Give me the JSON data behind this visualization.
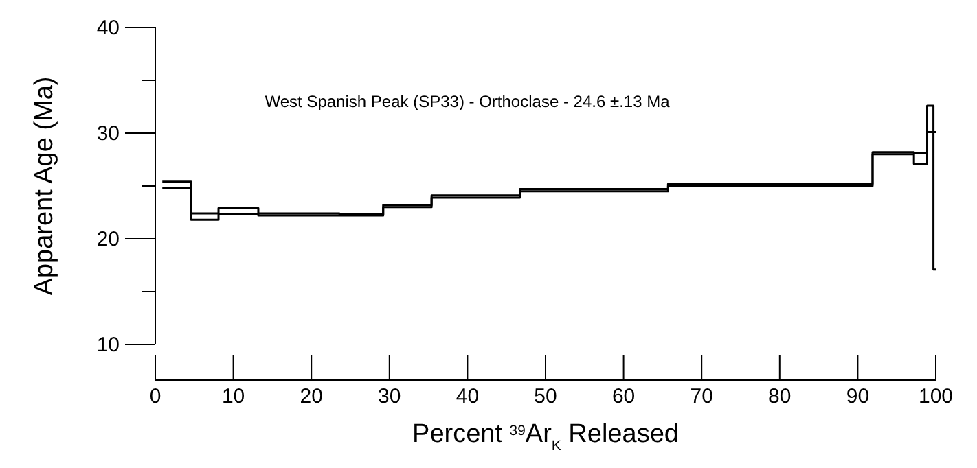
{
  "chart_data": {
    "type": "step",
    "xlabel": "Percent $^{39}$Ar$_{K}$ Released",
    "ylabel": "Apparent Age (Ma)",
    "annotations": [
      "West Spanish Peak (SP33) - Orthoclase - 24.6 ±.13 Ma"
    ],
    "x": [
      0.9,
      4.6,
      8.1,
      13.2,
      18.5,
      23.6,
      29.2,
      35.4,
      46.7,
      65.7,
      91.9,
      97.2,
      98.9,
      99.7,
      100
    ],
    "series": [
      {
        "color": "#000000",
        "values": [
          25.4,
          22.4,
          22.9,
          22.4,
          22.4,
          22.3,
          23.2,
          24.1,
          24.7,
          25.2,
          28.2,
          28.1,
          32.6,
          30.1,
          30.1
        ]
      },
      {
        "color": "#000000",
        "values": [
          24.8,
          21.8,
          22.3,
          22.2,
          22.2,
          22.2,
          23.0,
          23.9,
          24.5,
          25.0,
          28.0,
          27.1,
          30.1,
          17.1,
          17.1
        ]
      }
    ],
    "xlim": [
      0,
      100
    ],
    "xticks": [
      0,
      10,
      20,
      30,
      40,
      50,
      60,
      70,
      80,
      90,
      100
    ],
    "ylim": [
      10,
      40
    ],
    "yticks": [
      10,
      {
        "value": 15,
        "label": null
      },
      20,
      {
        "value": 25,
        "label": null
      },
      30,
      {
        "value": 35,
        "label": null
      },
      40
    ],
    "line_style": "solid"
  }
}
